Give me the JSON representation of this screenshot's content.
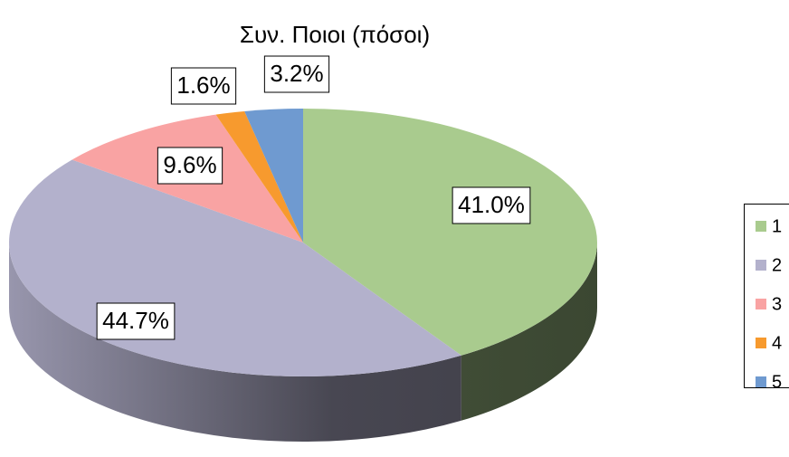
{
  "chart_data": {
    "type": "pie",
    "title": "Συν. Ποιοι (πόσοι)",
    "categories": [
      "1",
      "2",
      "3",
      "4",
      "5"
    ],
    "values": [
      41.0,
      44.7,
      9.6,
      1.6,
      3.2
    ],
    "value_labels": [
      "41.0%",
      "44.7%",
      "9.6%",
      "1.6%",
      "3.2%"
    ],
    "colors": [
      "#a9cb8e",
      "#b3b1cc",
      "#f9a3a3",
      "#f79a2e",
      "#6f9ad0"
    ],
    "legend": "right"
  }
}
